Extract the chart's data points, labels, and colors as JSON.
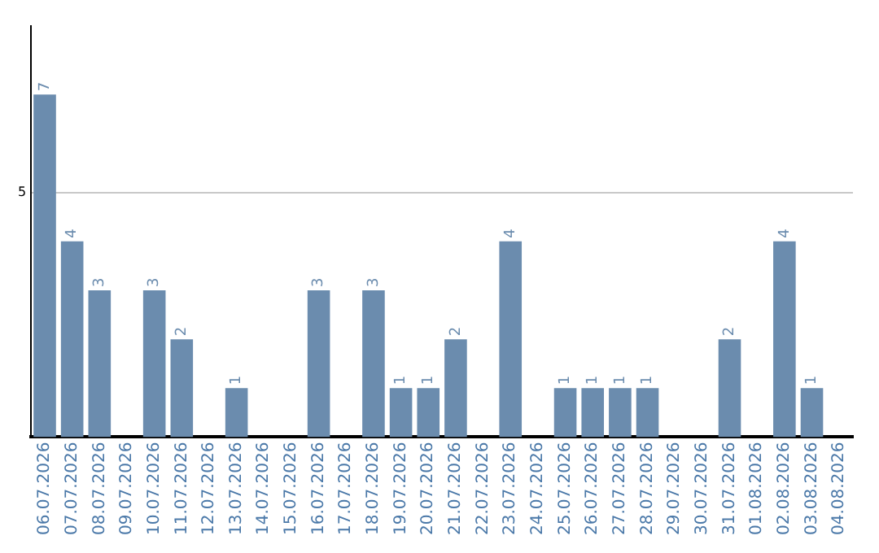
{
  "chart_data": {
    "type": "bar",
    "categories": [
      "06.07.2026",
      "07.07.2026",
      "08.07.2026",
      "09.07.2026",
      "10.07.2026",
      "11.07.2026",
      "12.07.2026",
      "13.07.2026",
      "14.07.2026",
      "15.07.2026",
      "16.07.2026",
      "17.07.2026",
      "18.07.2026",
      "19.07.2026",
      "20.07.2026",
      "21.07.2026",
      "22.07.2026",
      "23.07.2026",
      "24.07.2026",
      "25.07.2026",
      "26.07.2026",
      "27.07.2026",
      "28.07.2026",
      "29.07.2026",
      "30.07.2026",
      "31.07.2026",
      "01.08.2026",
      "02.08.2026",
      "03.08.2026",
      "04.08.2026"
    ],
    "values": [
      7,
      4,
      3,
      0,
      3,
      2,
      0,
      1,
      0,
      0,
      3,
      0,
      3,
      1,
      1,
      2,
      0,
      4,
      0,
      1,
      1,
      1,
      1,
      0,
      0,
      2,
      0,
      4,
      1,
      0
    ],
    "value_labels": [
      "7",
      "4",
      "3",
      null,
      "3",
      "2",
      null,
      "1",
      null,
      null,
      "3",
      null,
      "3",
      "1",
      "1",
      "2",
      null,
      "4",
      null,
      "1",
      "1",
      "1",
      "1",
      null,
      null,
      "2",
      null,
      "4",
      "1",
      null
    ],
    "color": "#6b8cae",
    "ylim": [
      0,
      8.4
    ],
    "yticks": [
      5
    ],
    "grid": "y",
    "legend": false
  }
}
